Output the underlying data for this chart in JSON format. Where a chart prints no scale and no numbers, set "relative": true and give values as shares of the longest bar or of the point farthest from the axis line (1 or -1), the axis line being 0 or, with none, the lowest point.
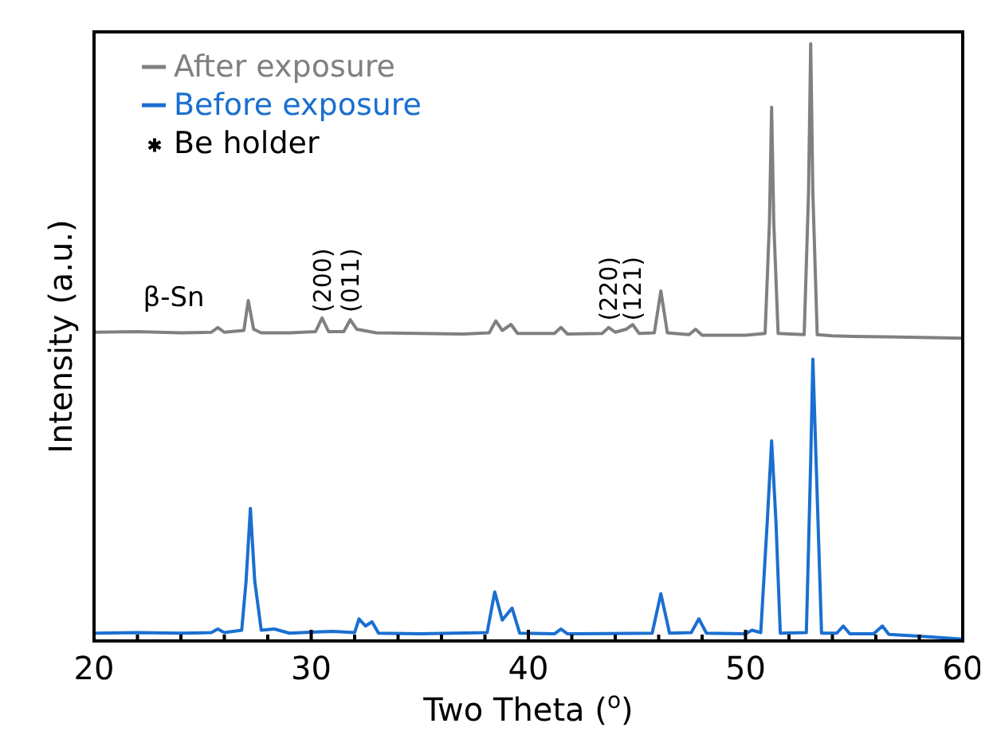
{
  "chart_data": {
    "type": "line",
    "relative": true,
    "xlabel": "Two Theta ($^{o}$)",
    "ylabel": "Intensity (a.u.)",
    "xlim": [
      20,
      60
    ],
    "xticks": [
      20,
      {
        "value": 22,
        "label": null
      },
      {
        "value": 24,
        "label": null
      },
      {
        "value": 26,
        "label": null
      },
      {
        "value": 28,
        "label": null
      },
      30,
      {
        "value": 32,
        "label": null
      },
      {
        "value": 34,
        "label": null
      },
      {
        "value": 36,
        "label": null
      },
      {
        "value": 38,
        "label": null
      },
      40,
      {
        "value": 42,
        "label": null
      },
      {
        "value": 44,
        "label": null
      },
      {
        "value": 46,
        "label": null
      },
      {
        "value": 48,
        "label": null
      },
      50,
      {
        "value": 52,
        "label": null
      },
      {
        "value": 54,
        "label": null
      },
      {
        "value": 56,
        "label": null
      },
      {
        "value": 58,
        "label": null
      },
      60
    ],
    "legend": "top left",
    "series": [
      {
        "name": "After exposure",
        "color": "#808080",
        "x": [
          20,
          22,
          24,
          25.4,
          25.7,
          26.0,
          26.9,
          27.1,
          27.35,
          27.7,
          29,
          30.2,
          30.5,
          30.8,
          31.5,
          31.8,
          32.1,
          32.4,
          33,
          35,
          37,
          38.2,
          38.5,
          38.8,
          39.2,
          39.5,
          41.2,
          41.5,
          41.8,
          43.4,
          43.7,
          44.0,
          44.5,
          44.8,
          45.1,
          45.8,
          46.1,
          46.4,
          47.4,
          47.7,
          48,
          50,
          50.9,
          51.1,
          51.2,
          51.3,
          51.5,
          52.7,
          52.9,
          53.0,
          53.1,
          53.3,
          54,
          55,
          57,
          60
        ],
        "values": [
          0.517,
          0.518,
          0.516,
          0.517,
          0.525,
          0.517,
          0.52,
          0.57,
          0.522,
          0.516,
          0.516,
          0.518,
          0.541,
          0.518,
          0.518,
          0.538,
          0.522,
          0.52,
          0.516,
          0.515,
          0.514,
          0.516,
          0.536,
          0.52,
          0.53,
          0.515,
          0.515,
          0.525,
          0.514,
          0.515,
          0.525,
          0.517,
          0.522,
          0.53,
          0.515,
          0.516,
          0.586,
          0.516,
          0.513,
          0.522,
          0.512,
          0.512,
          0.515,
          0.7,
          0.894,
          0.7,
          0.515,
          0.513,
          0.75,
          1,
          0.75,
          0.513,
          0.511,
          0.51,
          0.509,
          0.507
        ]
      },
      {
        "name": "Before exposure",
        "color": "#1a6fd0",
        "x": [
          20,
          22,
          24,
          25.4,
          25.7,
          26.0,
          26.8,
          27.0,
          27.2,
          27.4,
          27.7,
          28.3,
          29,
          30.2,
          31,
          32,
          32.2,
          32.5,
          32.8,
          33.1,
          35,
          38.1,
          38.45,
          38.8,
          39.25,
          39.6,
          41.2,
          41.5,
          41.8,
          45.7,
          46.1,
          46.5,
          47.5,
          47.85,
          48.2,
          50,
          50.3,
          50.7,
          51.0,
          51.2,
          51.4,
          51.6,
          52.8,
          53.0,
          53.1,
          53.25,
          53.5,
          54.2,
          54.5,
          54.8,
          55.9,
          56.3,
          56.6,
          58,
          60
        ],
        "values": [
          0.013,
          0.014,
          0.013,
          0.014,
          0.02,
          0.014,
          0.018,
          0.1,
          0.222,
          0.1,
          0.018,
          0.02,
          0.013,
          0.015,
          0.016,
          0.014,
          0.037,
          0.025,
          0.032,
          0.013,
          0.012,
          0.014,
          0.082,
          0.035,
          0.055,
          0.013,
          0.012,
          0.02,
          0.012,
          0.013,
          0.079,
          0.013,
          0.014,
          0.037,
          0.013,
          0.012,
          0.018,
          0.014,
          0.2,
          0.335,
          0.2,
          0.013,
          0.014,
          0.3,
          0.472,
          0.3,
          0.013,
          0.013,
          0.025,
          0.012,
          0.012,
          0.025,
          0.011,
          0.008,
          0.003
        ]
      },
      {
        "name": "Be holder",
        "type": "scatter",
        "marker": "star",
        "color": "#000000"
      }
    ],
    "annotations": [
      "β-Sn",
      {
        "text": "(200)",
        "x": 30.5,
        "y": 0.55
      },
      {
        "text": "(011)",
        "x": 31.8,
        "y": 0.55
      },
      {
        "text": "(220)",
        "x": 43.7,
        "y": 0.536
      },
      {
        "text": "(121)",
        "x": 44.8,
        "y": 0.536
      }
    ]
  }
}
